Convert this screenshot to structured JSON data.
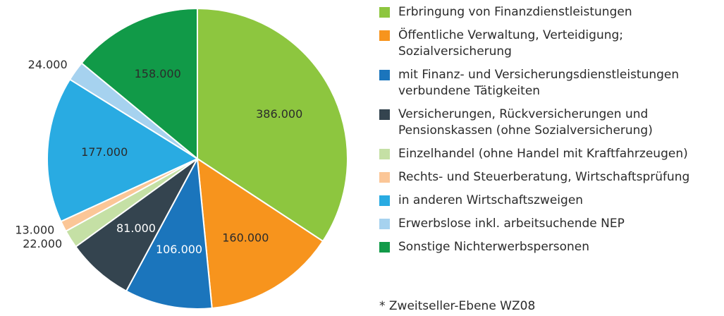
{
  "chart_data": {
    "type": "pie",
    "categories": [
      "Erbringung von Finanzdienstleistungen",
      "Öffentliche Verwaltung, Verteidigung; Sozialversicherung",
      "mit Finanz- und Versicherungsdienstleistungen verbundene Tätigkeiten",
      "Versicherungen, Rückversicherungen und Pensionskassen (ohne Sozialversicherung)",
      "Einzelhandel (ohne Handel mit Kraftfahrzeugen)",
      "Rechts- und Steuerberatung, Wirtschaftsprüfung",
      "in anderen Wirtschaftszweigen",
      "Erwerbslose inkl. arbeitsuchende NEP",
      "Sonstige Nichterwerbspersonen"
    ],
    "values": [
      386000,
      160000,
      106000,
      81000,
      22000,
      13000,
      177000,
      24000,
      158000
    ],
    "value_labels": [
      "386.000",
      "160.000",
      "106.000",
      "81.000",
      "22.000",
      "13.000",
      "177.000",
      "24.000",
      "158.000"
    ],
    "colors": [
      "#8dc63f",
      "#f7941d",
      "#1b75bc",
      "#34444f",
      "#c5e0a5",
      "#fbc697",
      "#29abe2",
      "#a6d2ef",
      "#119a48"
    ],
    "note": "* Zweitseller-Ebene WZ08"
  }
}
